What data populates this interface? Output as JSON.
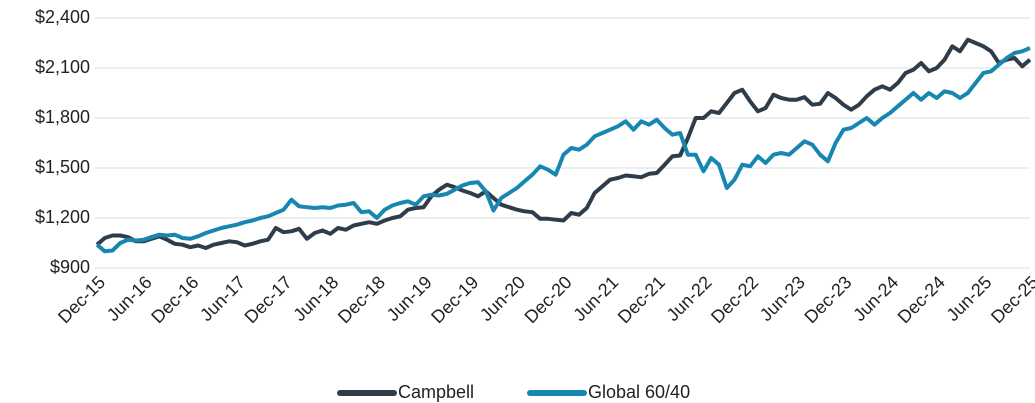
{
  "chart_data": {
    "type": "line",
    "categories": [
      "Dec-15",
      null,
      null,
      null,
      null,
      null,
      "Jun-16",
      null,
      null,
      null,
      null,
      null,
      "Dec-16",
      null,
      null,
      null,
      null,
      null,
      "Jun-17",
      null,
      null,
      null,
      null,
      null,
      "Dec-17",
      null,
      null,
      null,
      null,
      null,
      "Jun-18",
      null,
      null,
      null,
      null,
      null,
      "Dec-18",
      null,
      null,
      null,
      null,
      null,
      "Jun-19",
      null,
      null,
      null,
      null,
      null,
      "Dec-19",
      null,
      null,
      null,
      null,
      null,
      "Jun-20",
      null,
      null,
      null,
      null,
      null,
      "Dec-20",
      null,
      null,
      null,
      null,
      null,
      "Jun-21",
      null,
      null,
      null,
      null,
      null,
      "Dec-21",
      null,
      null,
      null,
      null,
      null,
      "Jun-22",
      null,
      null,
      null,
      null,
      null,
      "Dec-22",
      null,
      null,
      null,
      null,
      null,
      "Jun-23",
      null,
      null,
      null,
      null,
      null,
      "Dec-23",
      null,
      null,
      null,
      null,
      null,
      "Jun-24",
      null,
      null,
      null,
      null,
      null,
      "Dec-24",
      null,
      null,
      null,
      null,
      null,
      "Jun-25",
      null,
      null,
      null,
      null,
      null,
      "Dec-25"
    ],
    "series": [
      {
        "name": "Campbell",
        "color": "#2f3d4b",
        "values": [
          1040,
          1080,
          1095,
          1095,
          1085,
          1060,
          1060,
          1075,
          1090,
          1070,
          1045,
          1040,
          1025,
          1035,
          1020,
          1040,
          1050,
          1060,
          1055,
          1035,
          1045,
          1060,
          1070,
          1140,
          1115,
          1120,
          1135,
          1075,
          1110,
          1125,
          1105,
          1140,
          1130,
          1155,
          1165,
          1175,
          1165,
          1185,
          1200,
          1210,
          1250,
          1260,
          1265,
          1330,
          1370,
          1400,
          1385,
          1365,
          1350,
          1330,
          1360,
          1320,
          1280,
          1265,
          1250,
          1240,
          1235,
          1195,
          1195,
          1190,
          1185,
          1230,
          1220,
          1260,
          1350,
          1390,
          1430,
          1440,
          1455,
          1450,
          1445,
          1465,
          1470,
          1520,
          1570,
          1575,
          1680,
          1800,
          1800,
          1840,
          1830,
          1890,
          1950,
          1970,
          1900,
          1840,
          1860,
          1940,
          1920,
          1910,
          1910,
          1925,
          1880,
          1885,
          1950,
          1920,
          1880,
          1850,
          1880,
          1930,
          1970,
          1990,
          1970,
          2010,
          2070,
          2090,
          2130,
          2080,
          2100,
          2150,
          2230,
          2200,
          2270,
          2250,
          2230,
          2200,
          2130,
          2150,
          2160,
          2110,
          2150
        ]
      },
      {
        "name": "Global 60/40",
        "color": "#1787b1",
        "values": [
          1040,
          1000,
          1005,
          1050,
          1070,
          1065,
          1070,
          1085,
          1100,
          1095,
          1100,
          1080,
          1075,
          1090,
          1110,
          1125,
          1140,
          1150,
          1160,
          1175,
          1185,
          1200,
          1210,
          1230,
          1250,
          1310,
          1270,
          1265,
          1260,
          1265,
          1260,
          1275,
          1280,
          1290,
          1235,
          1240,
          1200,
          1250,
          1275,
          1290,
          1300,
          1280,
          1330,
          1340,
          1335,
          1345,
          1370,
          1395,
          1410,
          1415,
          1360,
          1245,
          1320,
          1350,
          1380,
          1420,
          1460,
          1510,
          1490,
          1460,
          1580,
          1620,
          1610,
          1640,
          1690,
          1710,
          1730,
          1750,
          1780,
          1730,
          1780,
          1760,
          1790,
          1740,
          1700,
          1710,
          1580,
          1580,
          1480,
          1560,
          1520,
          1380,
          1430,
          1520,
          1510,
          1570,
          1530,
          1580,
          1590,
          1580,
          1620,
          1660,
          1640,
          1580,
          1540,
          1650,
          1730,
          1740,
          1770,
          1800,
          1760,
          1800,
          1830,
          1870,
          1910,
          1950,
          1910,
          1950,
          1920,
          1960,
          1950,
          1920,
          1950,
          2010,
          2070,
          2080,
          2120,
          2160,
          2190,
          2200,
          2220
        ]
      }
    ],
    "ylim": [
      900,
      2400
    ],
    "yticks": [
      {
        "value": 900,
        "label": "$900"
      },
      {
        "value": 1200,
        "label": "$1,200"
      },
      {
        "value": 1500,
        "label": "$1,500"
      },
      {
        "value": 1800,
        "label": "$1,800"
      },
      {
        "value": 2100,
        "label": "$2,100"
      },
      {
        "value": 2400,
        "label": "$2,400"
      }
    ],
    "grid": true,
    "legend": "bottom"
  }
}
